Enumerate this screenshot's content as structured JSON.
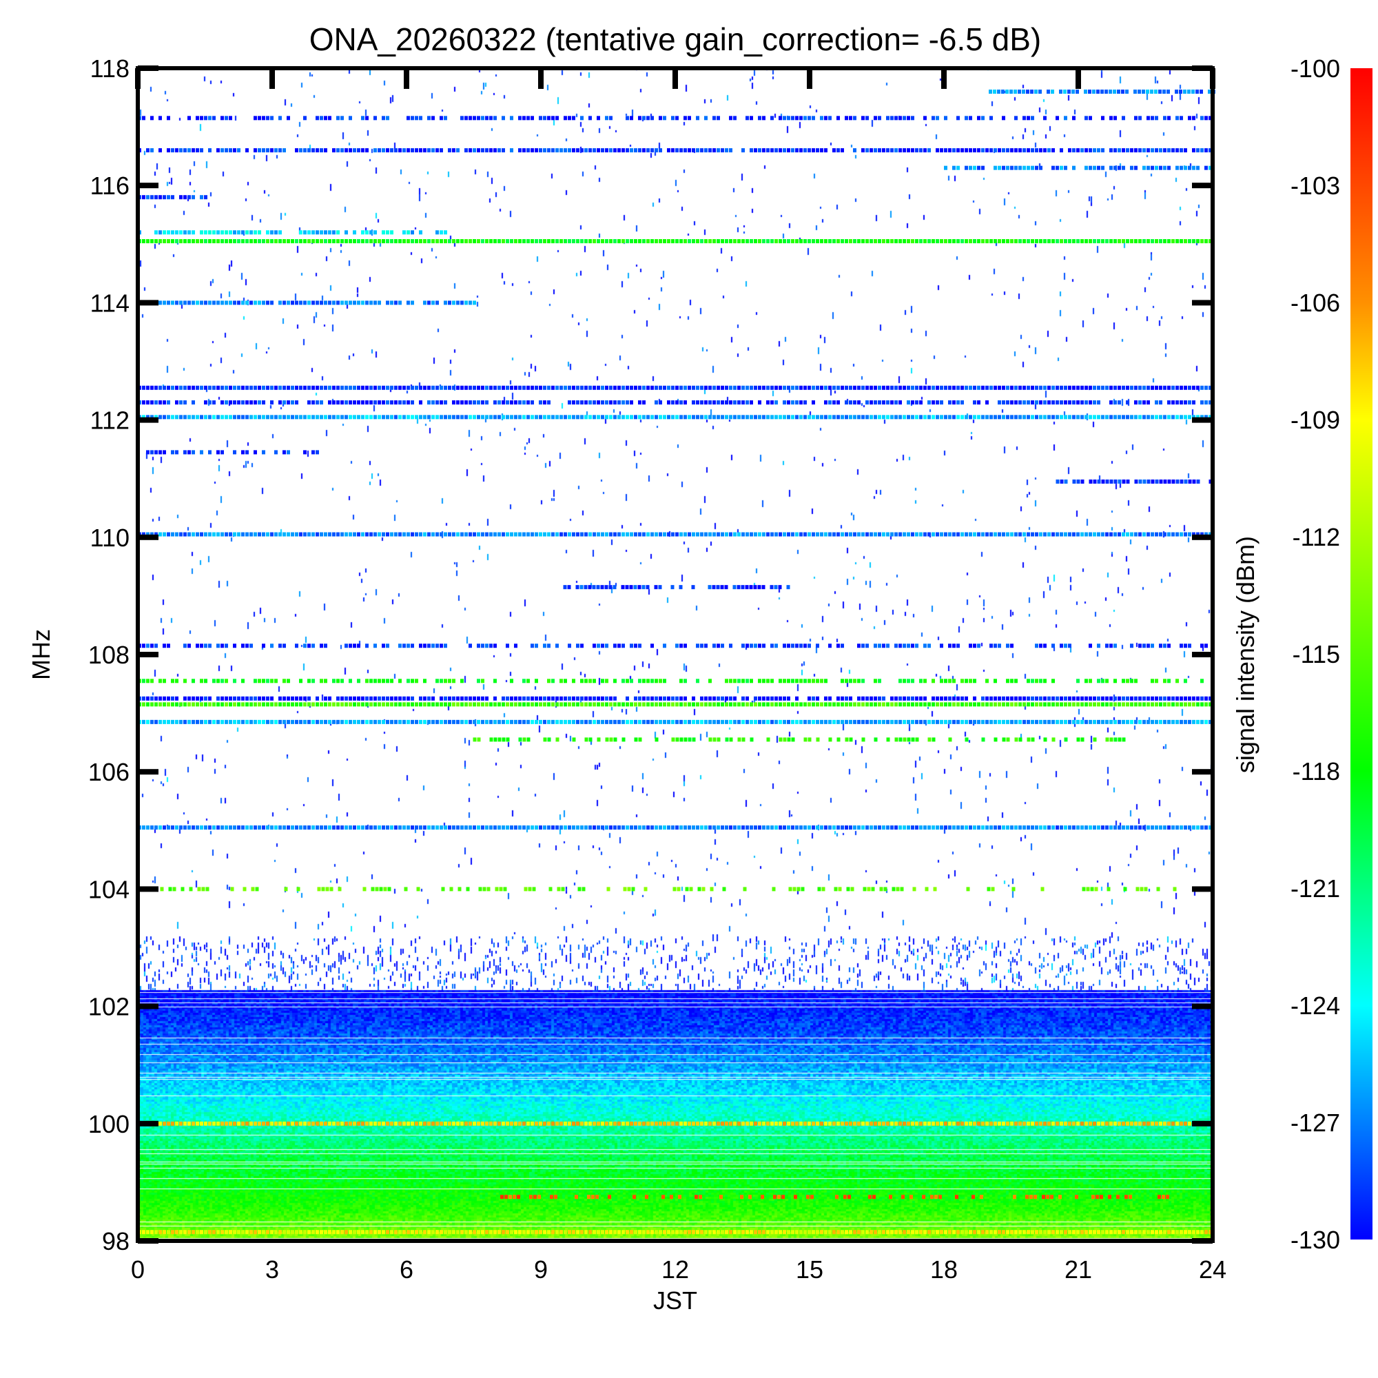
{
  "chart_data": {
    "type": "heatmap",
    "title": "ONA_20260322 (tentative gain_correction= -6.5 dB)",
    "xlabel": "JST",
    "ylabel": "MHz",
    "colorbar_label": "signal intensity (dBm)",
    "xlim": [
      0,
      24
    ],
    "ylim": [
      98,
      118
    ],
    "xticks": [
      "0",
      "3",
      "6",
      "9",
      "12",
      "15",
      "18",
      "21",
      "24"
    ],
    "yticks": [
      "98",
      "100",
      "102",
      "104",
      "106",
      "108",
      "110",
      "112",
      "114",
      "116",
      "118"
    ],
    "colorbar_range": [
      -130,
      -100
    ],
    "colorbar_ticks": [
      "-100",
      "-103",
      "-106",
      "-109",
      "-112",
      "-115",
      "-118",
      "-121",
      "-124",
      "-127",
      "-130"
    ],
    "colormap": [
      "#0000ff",
      "#00ffff",
      "#00ff00",
      "#ffff00",
      "#ff8000",
      "#ff0000"
    ],
    "bands": [
      {
        "freq": 117.6,
        "dbm": -127,
        "start": 19,
        "end": 24,
        "fill": 0.9
      },
      {
        "freq": 117.15,
        "dbm": -129,
        "start": 0,
        "end": 24,
        "fill": 0.6
      },
      {
        "freq": 116.6,
        "dbm": -129,
        "start": 0,
        "end": 24,
        "fill": 0.9
      },
      {
        "freq": 116.3,
        "dbm": -127,
        "start": 18,
        "end": 24,
        "fill": 0.8
      },
      {
        "freq": 115.8,
        "dbm": -129,
        "start": 0,
        "end": 1.5,
        "fill": 0.9
      },
      {
        "freq": 115.2,
        "dbm": -125,
        "start": 0,
        "end": 7,
        "fill": 0.8
      },
      {
        "freq": 115.05,
        "dbm": -118,
        "start": 0,
        "end": 24,
        "fill": 1.0
      },
      {
        "freq": 114.0,
        "dbm": -127,
        "start": 0,
        "end": 7.5,
        "fill": 0.9
      },
      {
        "freq": 112.55,
        "dbm": -129,
        "start": 0,
        "end": 24,
        "fill": 1.0
      },
      {
        "freq": 112.3,
        "dbm": -129,
        "start": 0,
        "end": 24,
        "fill": 0.8
      },
      {
        "freq": 112.05,
        "dbm": -126,
        "start": 0,
        "end": 24,
        "fill": 1.0
      },
      {
        "freq": 111.45,
        "dbm": -129,
        "start": 0,
        "end": 4,
        "fill": 0.5
      },
      {
        "freq": 110.95,
        "dbm": -129,
        "start": 20.5,
        "end": 24,
        "fill": 0.9
      },
      {
        "freq": 110.05,
        "dbm": -127,
        "start": 0,
        "end": 24,
        "fill": 1.0
      },
      {
        "freq": 109.15,
        "dbm": -129,
        "start": 9.5,
        "end": 14.5,
        "fill": 0.8
      },
      {
        "freq": 108.15,
        "dbm": -129,
        "start": 0,
        "end": 24,
        "fill": 0.6
      },
      {
        "freq": 107.55,
        "dbm": -118,
        "start": 0,
        "end": 24,
        "fill": 0.6
      },
      {
        "freq": 107.25,
        "dbm": -130,
        "start": 0,
        "end": 24,
        "fill": 0.9
      },
      {
        "freq": 107.15,
        "dbm": -116,
        "start": 0,
        "end": 24,
        "fill": 1.0
      },
      {
        "freq": 106.85,
        "dbm": -126,
        "start": 0,
        "end": 24,
        "fill": 1.0
      },
      {
        "freq": 106.55,
        "dbm": -117,
        "start": 7.3,
        "end": 22,
        "fill": 0.5
      },
      {
        "freq": 105.05,
        "dbm": -127,
        "start": 0,
        "end": 24,
        "fill": 1.0
      },
      {
        "freq": 104.0,
        "dbm": -115,
        "start": 0.5,
        "end": 24,
        "fill": 0.4
      },
      {
        "freq": 100.0,
        "dbm": -108,
        "start": 0,
        "end": 24,
        "fill": 1.0
      },
      {
        "freq": 98.75,
        "dbm": -104,
        "start": 8,
        "end": 23,
        "fill": 0.4
      },
      {
        "freq": 98.15,
        "dbm": -109,
        "start": 0,
        "end": 24,
        "fill": 1.0
      }
    ],
    "continuum": [
      {
        "freq": 102.3,
        "dbm": -130
      },
      {
        "freq": 101.5,
        "dbm": -128
      },
      {
        "freq": 100.4,
        "dbm": -124
      },
      {
        "freq": 99.5,
        "dbm": -120
      },
      {
        "freq": 98.6,
        "dbm": -117
      },
      {
        "freq": 98.0,
        "dbm": -113
      }
    ]
  }
}
